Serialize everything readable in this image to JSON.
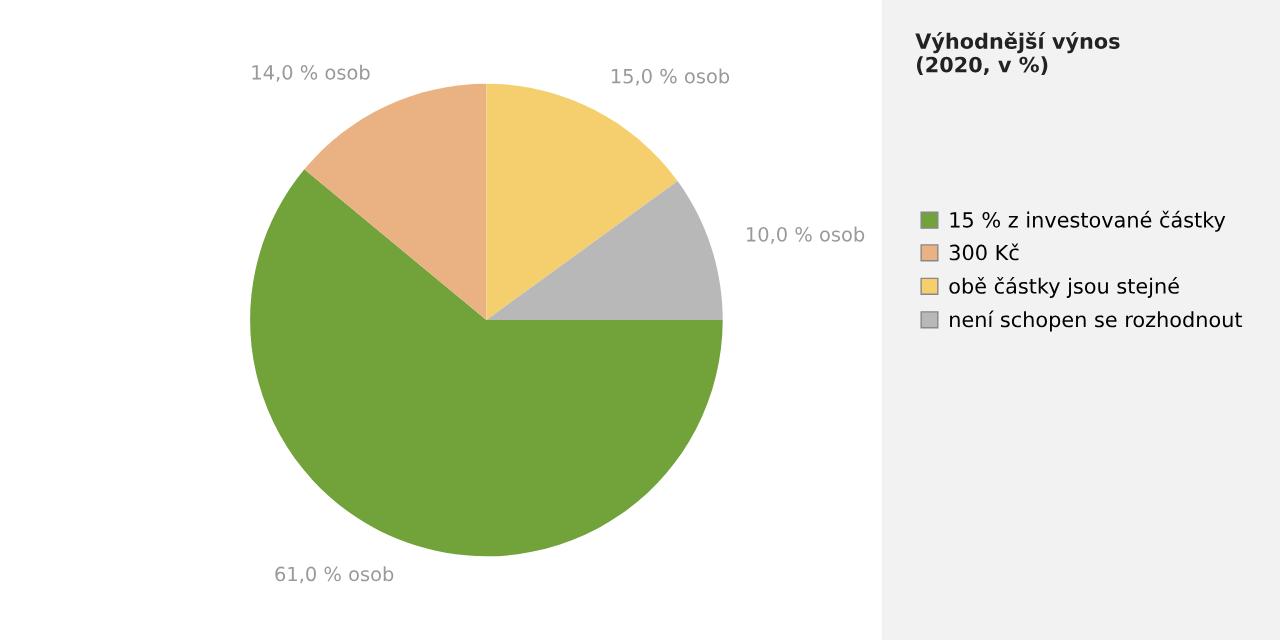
{
  "chart_data": {
    "type": "pie",
    "legend_title": "Výhodnější výnos\n(2020, v %)",
    "categories": [
      "15 % z investované částky",
      "300 Kč",
      "obě částky jsou stejné",
      "není schopen se rozhodnout"
    ],
    "values": [
      61,
      14,
      15,
      10
    ],
    "colors": [
      "#72a23a",
      "#eab283",
      "#f5cf6e",
      "#b8b8b8"
    ],
    "value_labels": [
      "61,0 % osob",
      "14,0 % osob",
      "15,0 % osob",
      "10,0 % osob"
    ],
    "legend": "right"
  }
}
